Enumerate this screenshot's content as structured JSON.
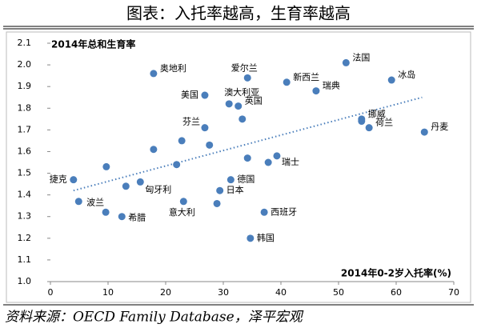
{
  "chart_data": {
    "type": "scatter",
    "title": "图表：入托率越高，生育率越高",
    "y_label": "2014年总和生育率",
    "x_label": "2014年0-2岁入托率(%)",
    "source": "资料来源：OECD Family Database，泽平宏观",
    "color": "#4a7ebb",
    "x": [
      17.9,
      26.8,
      26.8,
      34.2,
      31.0,
      32.6,
      33.3,
      41.0,
      51.3,
      46.1,
      59.2,
      54.0,
      54.0,
      55.3,
      64.9,
      39.3,
      37.8,
      34.2,
      9.7,
      17.9,
      22.8,
      27.6,
      21.9,
      31.3,
      29.4,
      28.9,
      23.1,
      37.1,
      34.7,
      4.0,
      4.9,
      9.6,
      12.4,
      15.6,
      13.1
    ],
    "values": [
      1.96,
      1.86,
      1.71,
      1.94,
      1.82,
      1.81,
      1.75,
      1.92,
      2.01,
      1.88,
      1.93,
      1.75,
      1.74,
      1.71,
      1.69,
      1.58,
      1.55,
      1.57,
      1.53,
      1.61,
      1.65,
      1.63,
      1.54,
      1.47,
      1.42,
      1.36,
      1.37,
      1.32,
      1.2,
      1.47,
      1.37,
      1.32,
      1.3,
      1.46,
      1.44
    ],
    "point_labels": [
      "奥地利",
      "美国",
      "芬兰",
      "爱尔兰",
      "澳大利亚",
      "英国",
      null,
      "新西兰",
      "法国",
      "瑞典",
      "冰岛",
      "挪威",
      null,
      "荷兰",
      "丹麦",
      "瑞士",
      null,
      null,
      null,
      null,
      null,
      null,
      null,
      "德国",
      "日本",
      null,
      "意大利",
      "西班牙",
      "韩国",
      "捷克",
      null,
      "波兰",
      "希腊",
      "匈牙利",
      null
    ],
    "trendline": {
      "x": [
        4.0,
        64.5
      ],
      "values": [
        1.42,
        1.85
      ],
      "color": "#4a7ebb"
    },
    "xlim": [
      0,
      70
    ],
    "xticks": [
      0,
      10,
      20,
      30,
      40,
      50,
      60,
      70
    ],
    "ylim": [
      1.0,
      2.1
    ],
    "yticks": [
      {
        "value": 1.0,
        "label": "1.0"
      },
      1.1,
      1.2,
      1.3,
      1.4,
      1.5,
      1.6,
      1.7,
      1.8,
      1.9,
      {
        "value": 2.0,
        "label": "2.0"
      },
      2.1
    ]
  }
}
